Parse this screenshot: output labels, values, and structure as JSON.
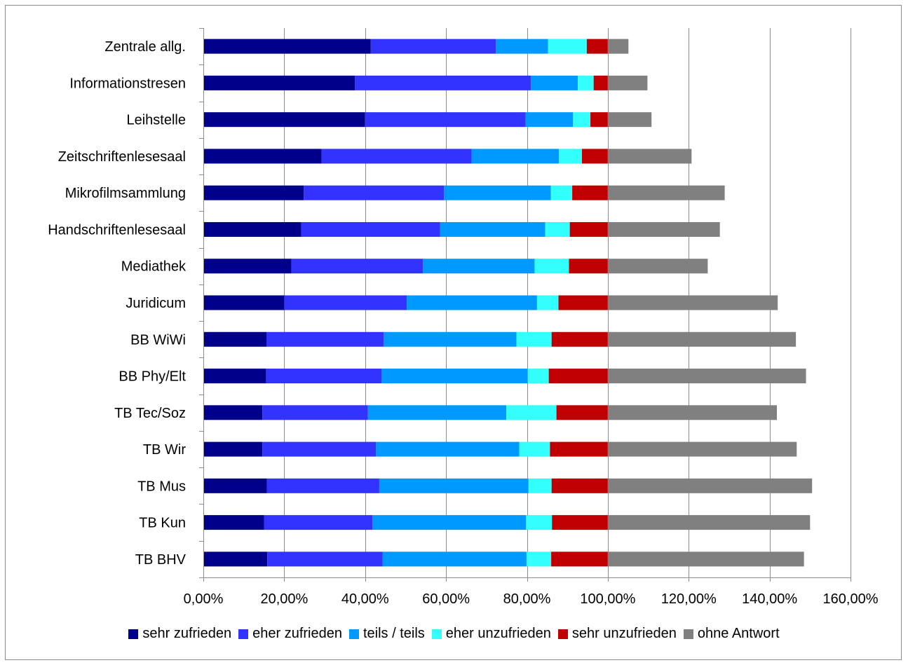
{
  "chart_data": {
    "type": "bar",
    "orientation": "horizontal",
    "stacked": true,
    "title": "",
    "xlabel": "",
    "ylabel": "",
    "xlim": [
      0,
      160
    ],
    "x_ticks": [
      0,
      20,
      40,
      60,
      80,
      100,
      120,
      140,
      160
    ],
    "x_tick_labels": [
      "0,00%",
      "20,00%",
      "40,00%",
      "60,00%",
      "80,00%",
      "100,00%",
      "120,00%",
      "140,00%",
      "160,00%"
    ],
    "grid": "vertical major gridlines",
    "legend_position": "bottom",
    "categories": [
      "Zentrale allg.",
      "Informationstresen",
      "Leihstelle",
      "Zeitschriftenlesesaal",
      "Mikrofilmsammlung",
      "Handschriftenlesesaal",
      "Mediathek",
      "Juridicum",
      "BB WiWi",
      "BB Phy/Elt",
      "TB Tec/Soz",
      "TB Wir",
      "TB Mus",
      "TB Kun",
      "TB BHV"
    ],
    "series": [
      {
        "name": "sehr zufrieden",
        "color": "#00008b",
        "values": [
          41.4,
          37.5,
          40.0,
          29.2,
          24.8,
          24.2,
          21.8,
          20.0,
          15.6,
          15.5,
          14.6,
          14.6,
          15.7,
          15.0,
          15.8
        ]
      },
      {
        "name": "eher zufrieden",
        "color": "#3333ff",
        "values": [
          30.9,
          43.5,
          39.7,
          37.1,
          34.7,
          34.3,
          32.5,
          30.3,
          29.0,
          28.6,
          26.1,
          28.1,
          27.8,
          26.8,
          28.5
        ]
      },
      {
        "name": "teils / teils",
        "color": "#0099ff",
        "values": [
          12.9,
          11.6,
          11.7,
          21.6,
          26.4,
          26.0,
          27.6,
          32.2,
          32.8,
          36.1,
          34.2,
          35.4,
          36.9,
          38.0,
          35.6
        ]
      },
      {
        "name": "eher unzufrieden",
        "color": "#33ffff",
        "values": [
          9.6,
          3.9,
          4.3,
          5.7,
          5.3,
          6.1,
          8.5,
          5.3,
          8.7,
          5.2,
          12.4,
          7.6,
          5.7,
          6.4,
          6.1
        ]
      },
      {
        "name": "sehr unzufrieden",
        "color": "#c00000",
        "values": [
          5.2,
          3.5,
          4.3,
          6.4,
          8.8,
          9.4,
          9.6,
          12.2,
          13.9,
          14.6,
          12.7,
          14.3,
          13.9,
          13.8,
          14.0
        ]
      },
      {
        "name": "ohne Antwort",
        "color": "#808080",
        "values": [
          5.1,
          9.8,
          10.8,
          20.7,
          28.9,
          27.7,
          24.7,
          42.0,
          46.5,
          49.0,
          41.8,
          46.7,
          50.5,
          50.0,
          48.5
        ]
      }
    ]
  }
}
